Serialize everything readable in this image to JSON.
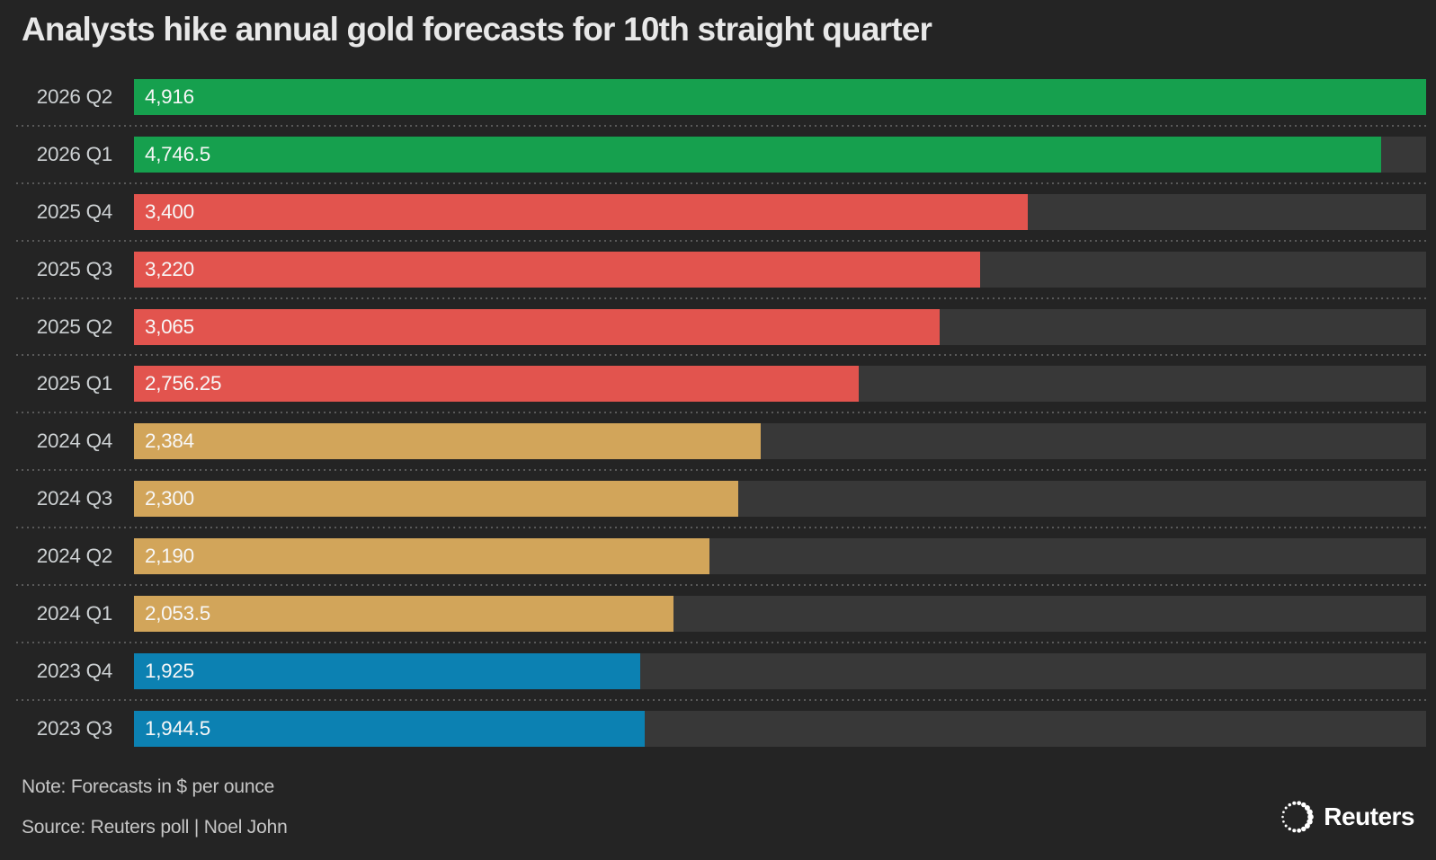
{
  "title": "Analysts hike annual gold forecasts for 10th straight quarter",
  "note": "Note: Forecasts in $ per ounce",
  "source": "Source: Reuters poll | Noel John",
  "brand": {
    "wordmark": "Reuters",
    "logo_icon": "reuters-dotted-circle"
  },
  "colors": {
    "background": "#242424",
    "bar_track": "#383838",
    "green": "#16a04e",
    "red": "#e2544e",
    "gold": "#d2a55a",
    "blue": "#0c81b2",
    "separator_dots": "#595959",
    "title_text": "#e8e8e8",
    "category_text": "#ccd0d2",
    "value_text": "#f7f7f7",
    "footer_text": "#c6c6c6"
  },
  "chart_data": {
    "type": "bar",
    "orientation": "horizontal",
    "title": "Analysts hike annual gold forecasts for 10th straight quarter",
    "categories": [
      "2026 Q2",
      "2026 Q1",
      "2025 Q4",
      "2025 Q3",
      "2025 Q2",
      "2025 Q1",
      "2024 Q4",
      "2024 Q3",
      "2024 Q2",
      "2024 Q1",
      "2023 Q4",
      "2023 Q3"
    ],
    "values": [
      4916,
      4746.5,
      3400,
      3220,
      3065,
      2756.25,
      2384,
      2300,
      2190,
      2053.5,
      1925,
      1944.5
    ],
    "value_labels": [
      "4,916",
      "4,746.5",
      "3,400",
      "3,220",
      "3,065",
      "2,756.25",
      "2,384",
      "2,300",
      "2,190",
      "2,053.5",
      "1,925",
      "1,944.5"
    ],
    "bar_colors": [
      "#16a04e",
      "#16a04e",
      "#e2544e",
      "#e2544e",
      "#e2544e",
      "#e2544e",
      "#d2a55a",
      "#d2a55a",
      "#d2a55a",
      "#d2a55a",
      "#0c81b2",
      "#0c81b2"
    ],
    "xlim": [
      0,
      4916
    ],
    "unit": "$ per ounce",
    "grid": "dotted horizontal separators between rows",
    "legend": "none",
    "value_label_position": "inside-left"
  }
}
